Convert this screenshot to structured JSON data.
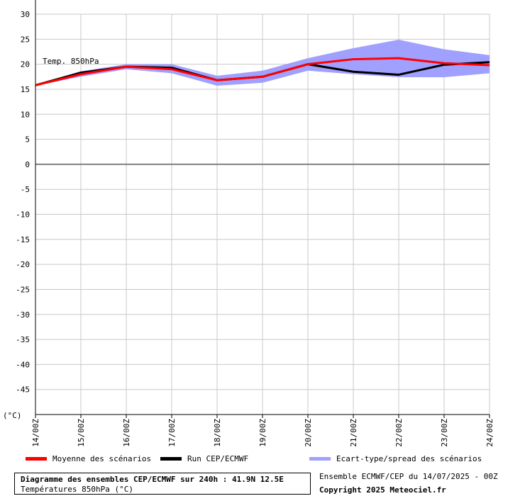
{
  "chart_data": {
    "type": "line",
    "ylim": [
      -50,
      30
    ],
    "y_ticks": [
      30,
      25,
      20,
      15,
      10,
      5,
      0,
      -5,
      -10,
      -15,
      -20,
      -25,
      -30,
      -35,
      -40,
      -45
    ],
    "y_unit": "(°C)",
    "categories": [
      "14/00Z",
      "15/00Z",
      "16/00Z",
      "17/00Z",
      "18/00Z",
      "19/00Z",
      "20/00Z",
      "21/00Z",
      "22/00Z",
      "23/00Z",
      "24/00Z"
    ],
    "annotation": "Temp. 850hPa",
    "grid": true,
    "series": [
      {
        "name": "Moyenne des scénarios",
        "color": "#ff0000",
        "values": [
          15.8,
          18.0,
          19.5,
          19.0,
          16.8,
          17.5,
          20.0,
          21.0,
          21.2,
          20.2,
          19.8
        ]
      },
      {
        "name": "Run CEP/ECMWF",
        "color": "#000000",
        "values": [
          15.8,
          18.3,
          19.5,
          19.3,
          16.8,
          17.5,
          20.0,
          18.5,
          17.9,
          19.9,
          20.4
        ]
      }
    ],
    "band": {
      "name": "Ecart-type/spread des scénarios",
      "color": "#a0a0ff",
      "upper": [
        15.9,
        18.6,
        20.0,
        20.0,
        17.7,
        18.7,
        21.2,
        23.2,
        24.9,
        23.0,
        21.8
      ],
      "lower": [
        15.7,
        17.5,
        19.0,
        18.2,
        15.7,
        16.3,
        18.7,
        18.0,
        17.4,
        17.4,
        18.2
      ]
    }
  },
  "legend": [
    {
      "label": "Moyenne des scénarios",
      "color": "#ff0000"
    },
    {
      "label": "Run CEP/ECMWF",
      "color": "#000000"
    },
    {
      "label": "Ecart-type/spread des scénarios",
      "color": "#a0a0ff"
    }
  ],
  "title": "Diagramme des ensembles CEP/ECMWF sur 240h : 41.9N 12.5E",
  "subtitle": "Températures 850hPa (°C)",
  "run_info": "Ensemble ECMWF/CEP du 14/07/2025 - 00Z",
  "copyright": "Copyright 2025 Meteociel.fr"
}
